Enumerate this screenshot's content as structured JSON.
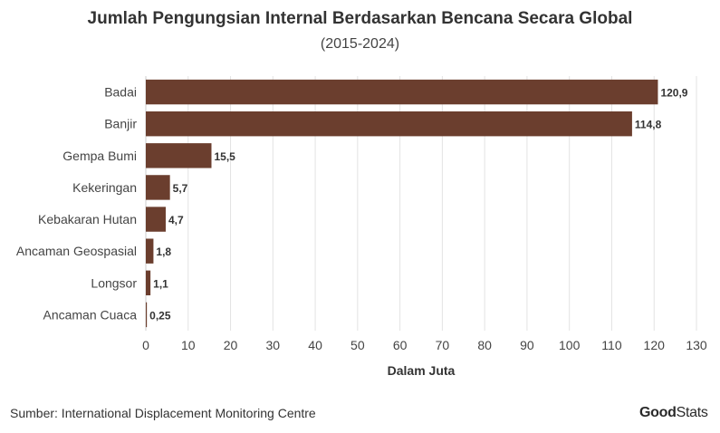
{
  "header": {
    "title": "Jumlah Pengungsian Internal Berdasarkan Bencana Secara Global",
    "subtitle": "(2015-2024)"
  },
  "footer": {
    "source": "Sumber: International Displacement Monitoring Centre",
    "logo_part1": "Good",
    "logo_part2": "Stats"
  },
  "colors": {
    "bar": "#6b3e2e",
    "grid": "#e3e3e3",
    "text": "#333333"
  },
  "chart_data": {
    "type": "bar",
    "orientation": "horizontal",
    "title": "Jumlah Pengungsian Internal Berdasarkan Bencana Secara Global",
    "subtitle": "(2015-2024)",
    "categories": [
      "Badai",
      "Banjir",
      "Gempa Bumi",
      "Kekeringan",
      "Kebakaran Hutan",
      "Ancaman Geospasial",
      "Longsor",
      "Ancaman Cuaca"
    ],
    "values": [
      120.9,
      114.8,
      15.5,
      5.7,
      4.7,
      1.8,
      1.1,
      0.25
    ],
    "value_labels": [
      "120,9",
      "114,8",
      "15,5",
      "5,7",
      "4,7",
      "1,8",
      "1,1",
      "0,25"
    ],
    "xlabel": "Dalam Juta",
    "ylabel": "",
    "xlim": [
      0,
      130
    ],
    "xticks": [
      0,
      10,
      20,
      30,
      40,
      50,
      60,
      70,
      80,
      90,
      100,
      110,
      120,
      130
    ],
    "grid": "vertical",
    "legend": "none"
  }
}
